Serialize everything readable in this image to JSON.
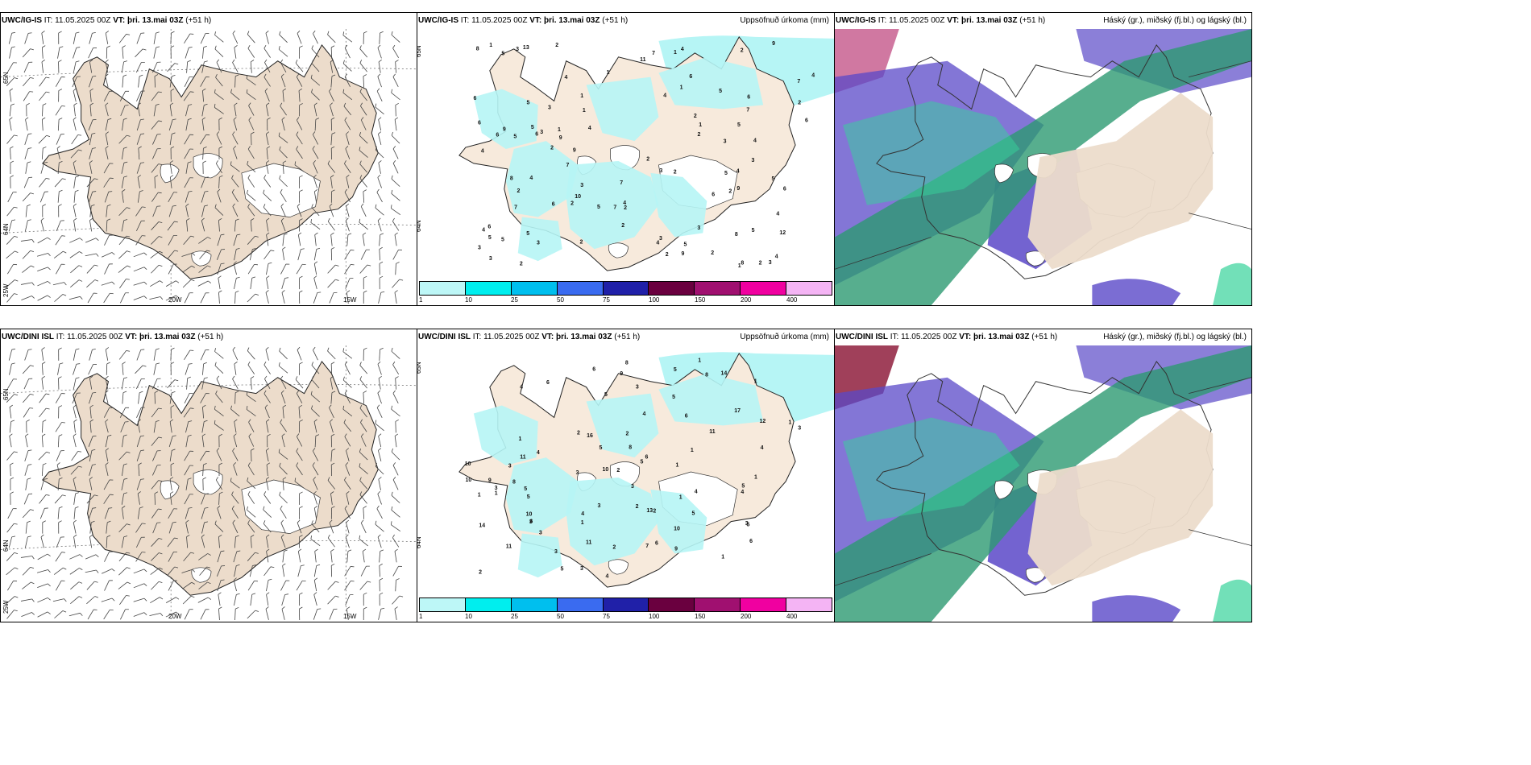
{
  "colors": {
    "land": "#ecdccb",
    "land_light": "#f7eadc",
    "ice": "#ffffff",
    "precip": "#b6f5f5",
    "high_cloud": "#2d9a72",
    "mid_cloud": "#36d39a",
    "low_cloud": "#5a48c8",
    "red_cloud": "#8f1f3d",
    "colorbar": [
      "#bdf7f7",
      "#00eeee",
      "#00bfee",
      "#3a6bf0",
      "#2020a8",
      "#6a003f",
      "#a01070",
      "#f000a0",
      "#f4b4f4"
    ]
  },
  "rows": [
    {
      "model": "UWC/IG-IS",
      "it_label": "IT: 11.05.2025 00Z",
      "vt_label": "VT: þri. 13.mai 03Z",
      "lead": "(+51 h)",
      "precip_numbers": [
        "7",
        "6",
        "3",
        "4",
        "3",
        "4",
        "7",
        "7",
        "2",
        "3",
        "4",
        "7",
        "8",
        "8",
        "9",
        "3",
        "2",
        "6",
        "7",
        "4",
        "2",
        "3",
        "5",
        "6",
        "5",
        "2",
        "4",
        "6",
        "6",
        "4",
        "10",
        "5",
        "5",
        "4",
        "5",
        "6",
        "9",
        "13",
        "4",
        "2",
        "4",
        "4",
        "5",
        "2",
        "2",
        "5",
        "4",
        "3",
        "2",
        "6",
        "2",
        "5",
        "2",
        "2",
        "2",
        "2",
        "3",
        "5",
        "7",
        "5",
        "1",
        "1",
        "6",
        "5",
        "8",
        "6",
        "9",
        "4",
        "6",
        "3",
        "8",
        "5",
        "2",
        "7",
        "12",
        "3",
        "6",
        "5",
        "4",
        "1",
        "9",
        "3",
        "2",
        "1",
        "2",
        "2",
        "11",
        "3",
        "1",
        "1",
        "4",
        "9",
        "2",
        "1",
        "1",
        "9",
        "3",
        "3",
        "5",
        "1"
      ]
    },
    {
      "model": "UWC/DINI ISL",
      "it_label": "IT: 11.05.2025 00Z",
      "vt_label": "VT: þri. 13.mai 03Z",
      "lead": "(+51 h)",
      "precip_numbers": [
        "11",
        "14",
        "6",
        "17",
        "13",
        "4",
        "5",
        "6",
        "12",
        "11",
        "9",
        "8",
        "5",
        "5",
        "4",
        "6",
        "6",
        "10",
        "3",
        "3",
        "9",
        "9",
        "5",
        "6",
        "8",
        "11",
        "3",
        "5",
        "4",
        "4",
        "1",
        "3",
        "6",
        "2",
        "5",
        "1",
        "1",
        "1",
        "6",
        "5",
        "3",
        "3",
        "2",
        "5",
        "10",
        "11",
        "1",
        "7",
        "4",
        "10",
        "16",
        "5",
        "2",
        "4",
        "3",
        "2",
        "2",
        "3",
        "4",
        "3",
        "2",
        "1",
        "5",
        "10",
        "3",
        "14",
        "10",
        "1",
        "1",
        "1",
        "4",
        "3",
        "5",
        "8",
        "8",
        "3",
        "1",
        "2",
        "1",
        "1"
      ]
    }
  ],
  "wind_panel": {
    "lat_labels": [
      "65N",
      "64N",
      "25W"
    ],
    "lon_labels": [
      "20W",
      "15W"
    ]
  },
  "precip_panel": {
    "title": "Uppsöfnuð úrkoma (mm)",
    "colorbar_ticks": [
      "1",
      "10",
      "25",
      "50",
      "75",
      "100",
      "150",
      "200",
      "400"
    ]
  },
  "cloud_panel": {
    "title": "Háský (gr.), miðský (fj.bl.) og lágský (bl.)"
  }
}
